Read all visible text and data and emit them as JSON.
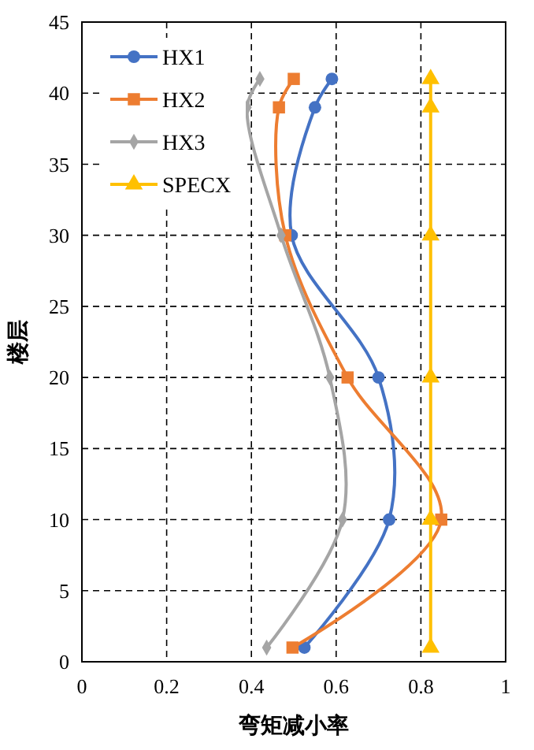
{
  "chart_data": {
    "type": "line",
    "xlabel": "弯矩减小率",
    "ylabel": "楼层",
    "xlim": [
      0,
      1
    ],
    "xticks": [
      0,
      0.2,
      0.4,
      0.6,
      0.8,
      1
    ],
    "ylim": [
      0,
      45
    ],
    "yticks": [
      0,
      5,
      10,
      15,
      20,
      25,
      30,
      35,
      40,
      45
    ],
    "grid": true,
    "legend": "top left",
    "line_style": "solid",
    "series": [
      {
        "name": "HX1",
        "color": "#4472c4",
        "marker": "circle",
        "x": [
          0.525,
          0.725,
          0.7,
          0.495,
          0.55,
          0.59
        ],
        "values": [
          1,
          10,
          20,
          30,
          39,
          41
        ]
      },
      {
        "name": "HX2",
        "color": "#ed7d31",
        "marker": "square",
        "x": [
          0.497,
          0.848,
          0.627,
          0.48,
          0.465,
          0.5
        ],
        "values": [
          1,
          10,
          20,
          30,
          39,
          41
        ]
      },
      {
        "name": "HX3",
        "color": "#a5a5a5",
        "marker": "diamond",
        "x": [
          0.436,
          0.615,
          0.585,
          0.47,
          0.39,
          0.42
        ],
        "values": [
          1,
          10,
          20,
          30,
          39,
          41
        ]
      },
      {
        "name": "SPECX",
        "color": "#ffc000",
        "marker": "triangle",
        "x": [
          0.823,
          0.823,
          0.823,
          0.823,
          0.823,
          0.823
        ],
        "values": [
          1,
          10,
          20,
          30,
          39,
          41
        ]
      }
    ]
  }
}
